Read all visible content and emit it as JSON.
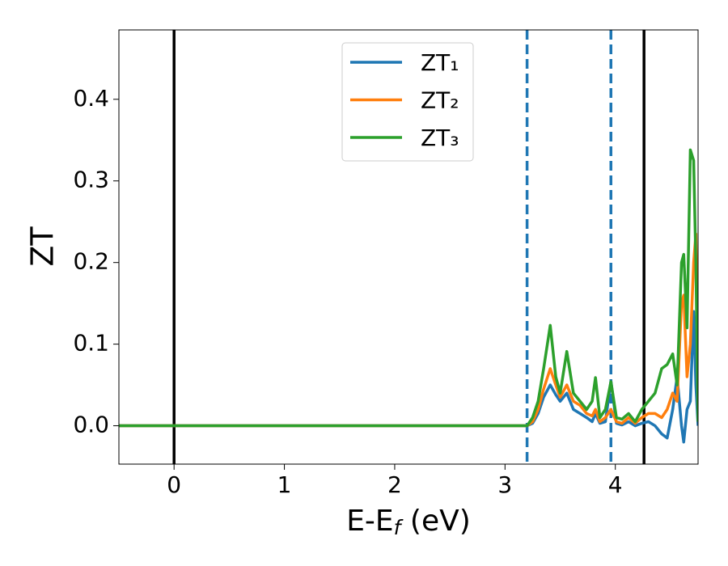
{
  "chart_data": {
    "type": "line",
    "ylabel": "ZT",
    "xlabel": [
      "E-E",
      "f",
      " (eV)"
    ],
    "x": [
      -0.5,
      3.2,
      3.25,
      3.3,
      3.35,
      3.41,
      3.46,
      3.5,
      3.56,
      3.62,
      3.68,
      3.74,
      3.79,
      3.82,
      3.86,
      3.91,
      3.96,
      4.01,
      4.06,
      4.12,
      4.18,
      4.24,
      4.3,
      4.36,
      4.42,
      4.47,
      4.52,
      4.56,
      4.6,
      4.62,
      4.65,
      4.68,
      4.71,
      4.73,
      4.75
    ],
    "series": [
      {
        "name": "ZT₁",
        "color": "#1f77b4",
        "values": [
          0,
          0,
          0.003,
          0.015,
          0.035,
          0.05,
          0.038,
          0.03,
          0.04,
          0.02,
          0.015,
          0.01,
          0.005,
          0.015,
          0.003,
          0.005,
          0.055,
          0.003,
          0.001,
          0.005,
          0,
          0.003,
          0.005,
          0,
          -0.01,
          -0.015,
          0.02,
          0.06,
          0,
          -0.02,
          0.02,
          0.03,
          0.14,
          0.05,
          0
        ]
      },
      {
        "name": "ZT₂",
        "color": "#ff7f0e",
        "values": [
          0,
          0,
          0.005,
          0.02,
          0.045,
          0.07,
          0.05,
          0.035,
          0.05,
          0.03,
          0.025,
          0.015,
          0.012,
          0.02,
          0.005,
          0.01,
          0.02,
          0.005,
          0.003,
          0.01,
          0.003,
          0.01,
          0.015,
          0.015,
          0.01,
          0.02,
          0.04,
          0.03,
          0.15,
          0.16,
          0.06,
          0.1,
          0.2,
          0.235,
          0.07
        ]
      },
      {
        "name": "ZT₃",
        "color": "#2ca02c",
        "values": [
          0,
          0,
          0.01,
          0.03,
          0.07,
          0.123,
          0.06,
          0.04,
          0.091,
          0.04,
          0.03,
          0.02,
          0.03,
          0.059,
          0.01,
          0.02,
          0.054,
          0.01,
          0.008,
          0.015,
          0.005,
          0.02,
          0.03,
          0.04,
          0.07,
          0.075,
          0.088,
          0.05,
          0.2,
          0.21,
          0.12,
          0.338,
          0.325,
          0.2,
          0.005
        ]
      }
    ],
    "vlines": [
      {
        "x": 0,
        "color": "#000000",
        "style": "solid"
      },
      {
        "x": 4.26,
        "color": "#000000",
        "style": "solid"
      },
      {
        "x": 3.2,
        "color": "#1f77b4",
        "style": "dashed"
      },
      {
        "x": 3.96,
        "color": "#1f77b4",
        "style": "dashed"
      }
    ],
    "xlim": [
      -0.5,
      4.75
    ],
    "ylim": [
      -0.047,
      0.485
    ],
    "xticks": [
      0,
      1,
      2,
      3,
      4
    ],
    "yticks": [
      {
        "value": 0,
        "label": "0.0"
      },
      {
        "value": 0.1,
        "label": "0.1"
      },
      {
        "value": 0.2,
        "label": "0.2"
      },
      {
        "value": 0.3,
        "label": "0.3"
      },
      {
        "value": 0.4,
        "label": "0.4"
      }
    ],
    "legend": "upper center"
  }
}
